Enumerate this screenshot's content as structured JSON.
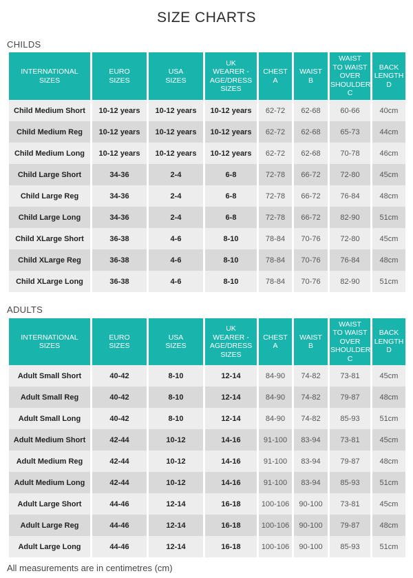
{
  "title": "SIZE CHARTS",
  "headers": [
    "INTERNATIONAL\nSIZES",
    "EURO\nSIZES",
    "USA\nSIZES",
    "UK\nWEARER -\nAGE/DRESS\nSIZES",
    "CHEST\nA",
    "WAIST\nB",
    "WAIST\nTO WAIST\nOVER\nSHOULDER\nC",
    "BACK\nLENGTH\nD"
  ],
  "childs": {
    "label": "CHILDS",
    "rows": [
      [
        "Child Medium Short",
        "10-12 years",
        "10-12 years",
        "10-12 years",
        "62-72",
        "62-68",
        "60-66",
        "40cm"
      ],
      [
        "Child Medium Reg",
        "10-12 years",
        "10-12 years",
        "10-12 years",
        "62-72",
        "62-68",
        "65-73",
        "44cm"
      ],
      [
        "Child Medium Long",
        "10-12 years",
        "10-12 years",
        "10-12 years",
        "62-72",
        "62-68",
        "70-78",
        "46cm"
      ],
      [
        "Child Large Short",
        "34-36",
        "2-4",
        "6-8",
        "72-78",
        "66-72",
        "72-80",
        "45cm"
      ],
      [
        "Child Large Reg",
        "34-36",
        "2-4",
        "6-8",
        "72-78",
        "66-72",
        "76-84",
        "48cm"
      ],
      [
        "Child Large Long",
        "34-36",
        "2-4",
        "6-8",
        "72-78",
        "66-72",
        "82-90",
        "51cm"
      ],
      [
        "Child XLarge Short",
        "36-38",
        "4-6",
        "8-10",
        "78-84",
        "70-76",
        "72-80",
        "45cm"
      ],
      [
        "Child XLarge Reg",
        "36-38",
        "4-6",
        "8-10",
        "78-84",
        "70-76",
        "76-84",
        "48cm"
      ],
      [
        "Child XLarge Long",
        "36-38",
        "4-6",
        "8-10",
        "78-84",
        "70-76",
        "82-90",
        "51cm"
      ]
    ]
  },
  "adults": {
    "label": "ADULTS",
    "rows": [
      [
        "Adult Small Short",
        "40-42",
        "8-10",
        "12-14",
        "84-90",
        "74-82",
        "73-81",
        "45cm"
      ],
      [
        "Adult Small Reg",
        "40-42",
        "8-10",
        "12-14",
        "84-90",
        "74-82",
        "79-87",
        "48cm"
      ],
      [
        "Adult Small Long",
        "40-42",
        "8-10",
        "12-14",
        "84-90",
        "74-82",
        "85-93",
        "51cm"
      ],
      [
        "Adult Medium Short",
        "42-44",
        "10-12",
        "14-16",
        "91-100",
        "83-94",
        "73-81",
        "45cm"
      ],
      [
        "Adult Medium Reg",
        "42-44",
        "10-12",
        "14-16",
        "91-100",
        "83-94",
        "79-87",
        "48cm"
      ],
      [
        "Adult Medium Long",
        "42-44",
        "10-12",
        "14-16",
        "91-100",
        "83-94",
        "85-93",
        "51cm"
      ],
      [
        "Adult Large Short",
        "44-46",
        "12-14",
        "16-18",
        "100-106",
        "90-100",
        "73-81",
        "45cm"
      ],
      [
        "Adult Large Reg",
        "44-46",
        "12-14",
        "16-18",
        "100-106",
        "90-100",
        "79-87",
        "48cm"
      ],
      [
        "Adult Large Long",
        "44-46",
        "12-14",
        "16-18",
        "100-106",
        "90-100",
        "85-93",
        "51cm"
      ]
    ]
  },
  "footnote": "All measurements are in centimetres (cm)",
  "colors": {
    "header_bg": "#19b5ad",
    "header_text": "#ffffff",
    "row_light": "#ededed",
    "row_dark": "#d9d9d9"
  }
}
